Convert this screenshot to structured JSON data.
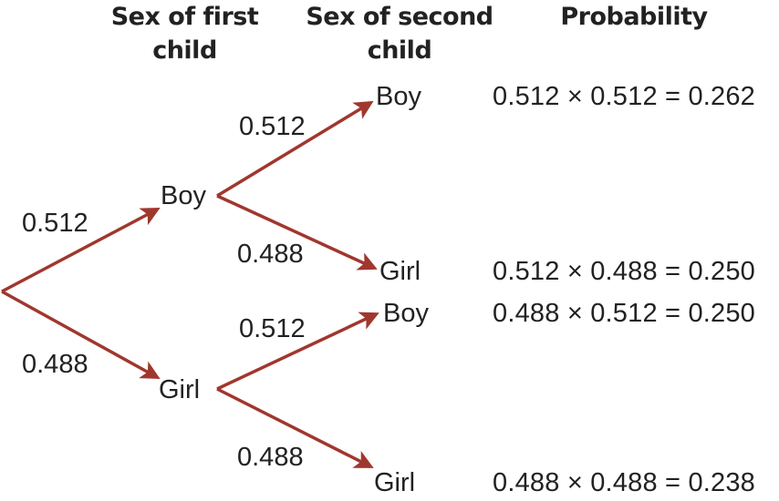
{
  "headers": {
    "first": "Sex of first child",
    "second": "Sex of second child",
    "probability": "Probability"
  },
  "arrow_color": "#A0372E",
  "first_level": [
    {
      "sex": "Boy",
      "prob": "0.512"
    },
    {
      "sex": "Girl",
      "prob": "0.488"
    }
  ],
  "second_level": [
    {
      "sex": "Boy",
      "prob": "0.512",
      "outcome": "0.512 × 0.512 = 0.262"
    },
    {
      "sex": "Girl",
      "prob": "0.488",
      "outcome": "0.512 × 0.488 = 0.250"
    },
    {
      "sex": "Boy",
      "prob": "0.512",
      "outcome": "0.488 × 0.512 = 0.250"
    },
    {
      "sex": "Girl",
      "prob": "0.488",
      "outcome": "0.488 × 0.488 = 0.238"
    }
  ]
}
